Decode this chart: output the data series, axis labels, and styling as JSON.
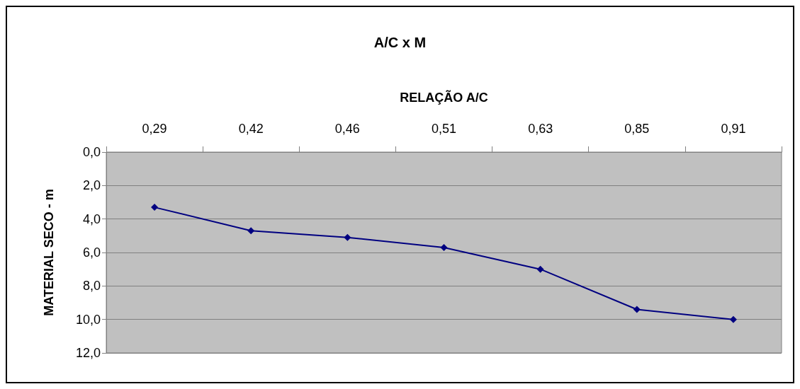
{
  "chart_data": {
    "type": "line",
    "title": "A/C x M",
    "xlabel": "RELAÇÃO A/C",
    "ylabel": "MATERIAL SECO - m",
    "categories": [
      "0,29",
      "0,42",
      "0,46",
      "0,51",
      "0,63",
      "0,85",
      "0,91"
    ],
    "series": [
      {
        "color": "#000080",
        "values": [
          3.3,
          4.7,
          5.1,
          5.7,
          7.0,
          9.4,
          10.0
        ]
      }
    ],
    "ylim": [
      12,
      0
    ],
    "yticks": [
      {
        "value": 0,
        "label": "0,0"
      },
      {
        "value": 2,
        "label": "2,0"
      },
      {
        "value": 4,
        "label": "4,0"
      },
      {
        "value": 6,
        "label": "6,0"
      },
      {
        "value": 8,
        "label": "8,0"
      },
      {
        "value": 10,
        "label": "10,0"
      },
      {
        "value": 12,
        "label": "12,0"
      }
    ],
    "grid": "y",
    "marker": "diamond",
    "line_style": "solid"
  }
}
